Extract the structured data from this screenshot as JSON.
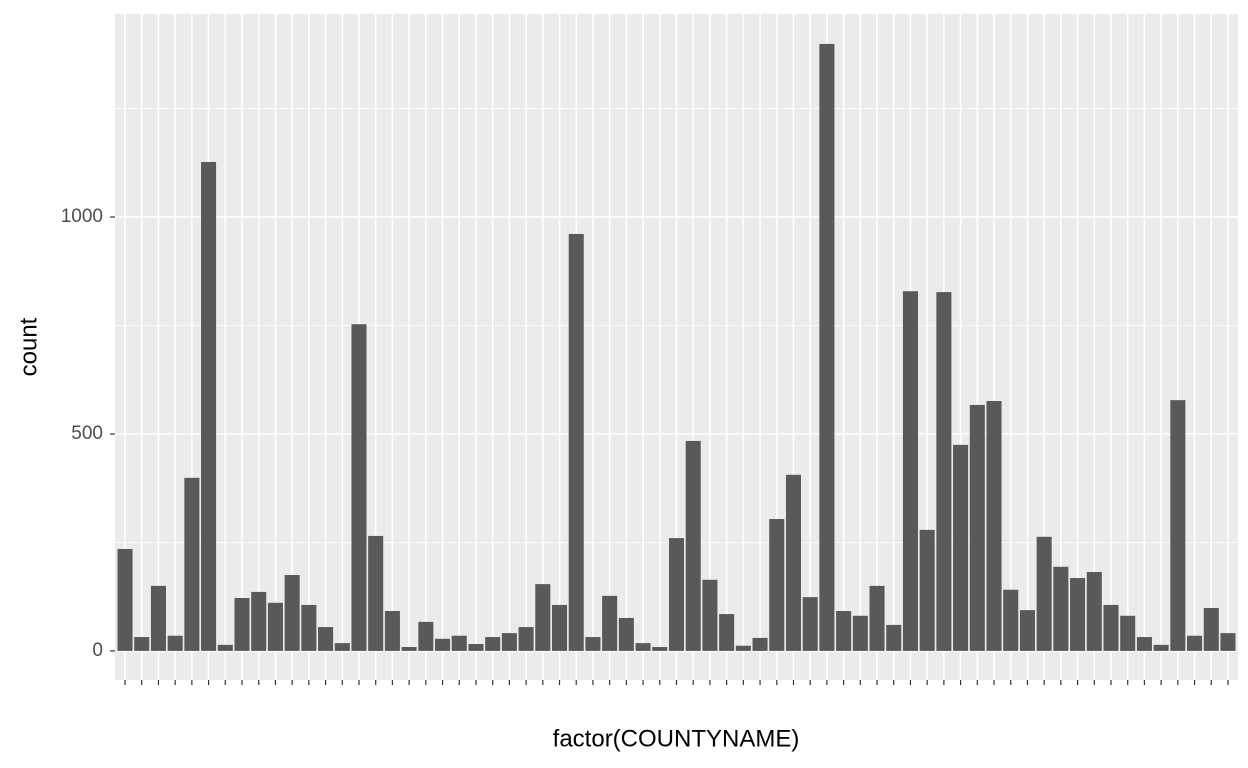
{
  "chart_data": {
    "type": "bar",
    "x_label": "factor(COUNTYNAME)",
    "y_label": "count",
    "categories": [
      null,
      null,
      null,
      null,
      null,
      null,
      null,
      null,
      null,
      null,
      null,
      null,
      null,
      null,
      null,
      null,
      null,
      null,
      null,
      null,
      null,
      null,
      null,
      null,
      null,
      null,
      null,
      null,
      null,
      null,
      null,
      null,
      null,
      null,
      null,
      null,
      null,
      null,
      null,
      null,
      null,
      null,
      null,
      null,
      null,
      null,
      null,
      null,
      null,
      null,
      null,
      null,
      null,
      null,
      null,
      null,
      null,
      null,
      null,
      null,
      null,
      null,
      null,
      null,
      null,
      null,
      null
    ],
    "values": [
      235,
      32,
      150,
      35,
      399,
      1127,
      14,
      122,
      136,
      111,
      175,
      106,
      55,
      18,
      753,
      265,
      92,
      9,
      67,
      28,
      35,
      16,
      32,
      41,
      55,
      154,
      106,
      961,
      32,
      127,
      76,
      18,
      9,
      260,
      484,
      164,
      85,
      12,
      30,
      304,
      406,
      124,
      1399,
      92,
      81,
      150,
      60,
      829,
      279,
      827,
      475,
      567,
      576,
      141,
      94,
      263,
      194,
      168,
      182,
      106,
      81,
      32,
      14,
      578,
      35,
      99,
      41
    ],
    "color": "#595959",
    "ylim": [
      -67,
      1468
    ],
    "yticks": [
      0,
      500,
      1000
    ],
    "grid": true
  }
}
